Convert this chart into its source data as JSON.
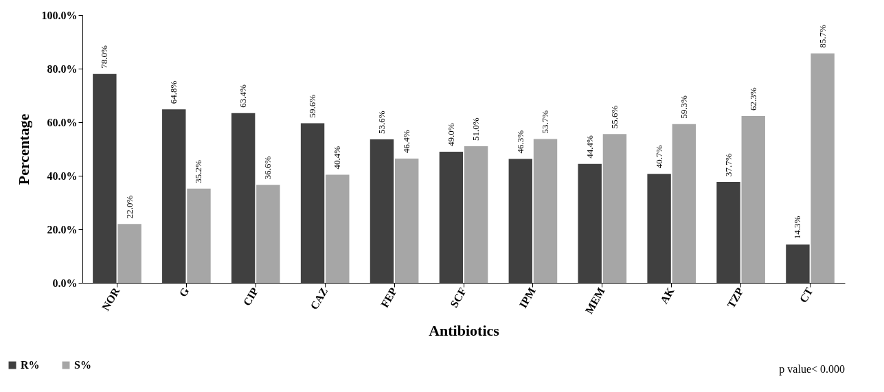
{
  "chart_data": {
    "type": "bar",
    "xlabel": "Antibiotics",
    "ylabel": "Percentage",
    "categories": [
      "NOR",
      "G",
      "CIP",
      "CAZ",
      "FEP",
      "SCF",
      "IPM",
      "MEM",
      "AK",
      "TZP",
      "CT"
    ],
    "series": [
      {
        "name": "R%",
        "color": "#404040",
        "values": [
          78.0,
          64.8,
          63.4,
          59.6,
          53.6,
          49.0,
          46.3,
          44.4,
          40.7,
          37.7,
          14.3
        ],
        "value_labels": [
          "78.0%",
          "64.8%",
          "63.4%",
          "59.6%",
          "53.6%",
          "49.0%",
          "46.3%",
          "44.4%",
          "40.7%",
          "37.7%",
          "14.3%"
        ]
      },
      {
        "name": "S%",
        "color": "#a6a6a6",
        "values": [
          22.0,
          35.2,
          36.6,
          40.4,
          46.4,
          51.0,
          53.7,
          55.6,
          59.3,
          62.3,
          85.7
        ],
        "value_labels": [
          "22.0%",
          "35.2%",
          "36.6%",
          "40.4%",
          "46.4%",
          "51.0%",
          "53.7%",
          "55.6%",
          "59.3%",
          "62.3%",
          "85.7%"
        ]
      }
    ],
    "ylim": [
      0,
      100
    ],
    "yticks": [
      {
        "value": 0,
        "label": "0.0%"
      },
      {
        "value": 20,
        "label": "20.0%"
      },
      {
        "value": 40,
        "label": "40.0%"
      },
      {
        "value": 60,
        "label": "60.0%"
      },
      {
        "value": 80,
        "label": "80.0%"
      },
      {
        "value": 100,
        "label": "100.0%"
      }
    ],
    "grid": false,
    "legend": "bottom left",
    "annotations": [
      "p value< 0.000"
    ]
  }
}
